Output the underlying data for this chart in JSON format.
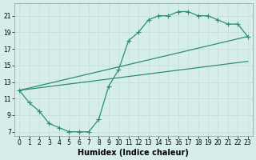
{
  "xlabel": "Humidex (Indice chaleur)",
  "line1_x": [
    0,
    1,
    2,
    3,
    4,
    5,
    6,
    7,
    8,
    9,
    10,
    11,
    12,
    13,
    14,
    15,
    16,
    17,
    18,
    19,
    20,
    21,
    22,
    23
  ],
  "line1_y": [
    12.0,
    10.5,
    9.5,
    8.0,
    7.5,
    7.0,
    7.0,
    7.0,
    8.5,
    12.5,
    14.5,
    18.0,
    19.0,
    20.5,
    21.0,
    21.0,
    21.5,
    21.5,
    21.0,
    21.0,
    20.5,
    20.0,
    20.0,
    18.5
  ],
  "line2_x": [
    0,
    23
  ],
  "line2_y": [
    12.0,
    18.5
  ],
  "line3_x": [
    0,
    23
  ],
  "line3_y": [
    12.0,
    15.5
  ],
  "line_color": "#2e8b7a",
  "bg_color": "#d5eee9",
  "grid_major_color": "#c2ddd8",
  "grid_minor_color": "#cce8e4",
  "xlim": [
    -0.5,
    23.5
  ],
  "ylim": [
    6.5,
    22.5
  ],
  "yticks": [
    7,
    9,
    11,
    13,
    15,
    17,
    19,
    21
  ],
  "xticks": [
    0,
    1,
    2,
    3,
    4,
    5,
    6,
    7,
    8,
    9,
    10,
    11,
    12,
    13,
    14,
    15,
    16,
    17,
    18,
    19,
    20,
    21,
    22,
    23
  ],
  "tick_labelsize": 5.5,
  "xlabel_fontsize": 7,
  "linewidth": 0.9,
  "markersize": 2.5
}
